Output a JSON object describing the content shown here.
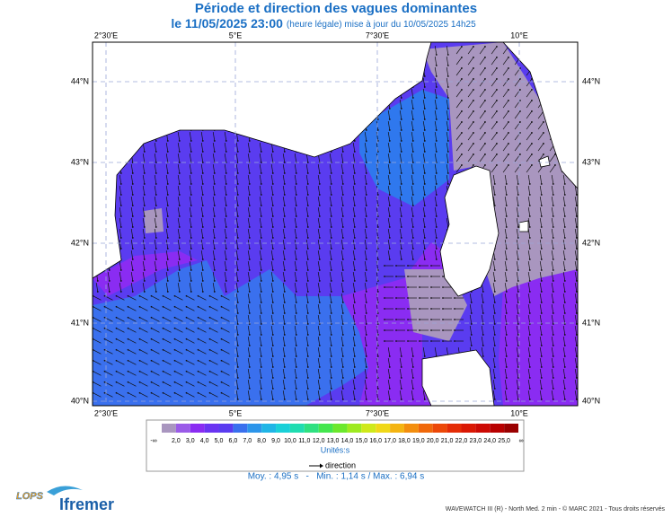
{
  "header": {
    "title": "Période et direction des vagues dominantes",
    "date": "le 11/05/2025 23:00",
    "update": "(heure légale) mise à jour du 10/05/2025 14h25"
  },
  "map": {
    "lon_labels": [
      "2°30'E",
      "5°E",
      "7°30'E",
      "10°E"
    ],
    "lat_labels": [
      "44°N",
      "43°N",
      "42°N",
      "41°N",
      "40°N"
    ]
  },
  "legend": {
    "low_end": "-∞",
    "high_end": "∞",
    "labels": [
      "2,0",
      "3,0",
      "4,0",
      "5,0",
      "6,0",
      "7,0",
      "8,0",
      "9,0",
      "10,0",
      "11,0",
      "12,0",
      "13,0",
      "14,0",
      "15,0",
      "16,0",
      "17,0",
      "18,0",
      "19,0",
      "20,0",
      "21,0",
      "22,0",
      "23,0",
      "24,0",
      "25,0"
    ],
    "colors": [
      "#a996bf",
      "#9a5be8",
      "#8a2cf2",
      "#6a34f2",
      "#5a3cf0",
      "#3a70ee",
      "#2c95ea",
      "#1fb5e6",
      "#19d0d8",
      "#1fdcb0",
      "#2ee080",
      "#44e64e",
      "#6ce82c",
      "#9eea20",
      "#cfe91a",
      "#f0d818",
      "#f4b412",
      "#f38e0e",
      "#f0680a",
      "#ec4808",
      "#e42c06",
      "#da1804",
      "#cc0a04",
      "#b80000",
      "#9a0000"
    ],
    "units": "Unités:s",
    "direction": "direction"
  },
  "stats": "Moy. : 4,95 s   -   Min. : 1,14 s / Max. : 6,94 s",
  "footer": "WAVEWATCH III (R) - North Med. 2 min - © MARC 2021 - Tous droits réservés",
  "logos": {
    "lops": "LOPS",
    "ifremer": "Ifremer"
  }
}
